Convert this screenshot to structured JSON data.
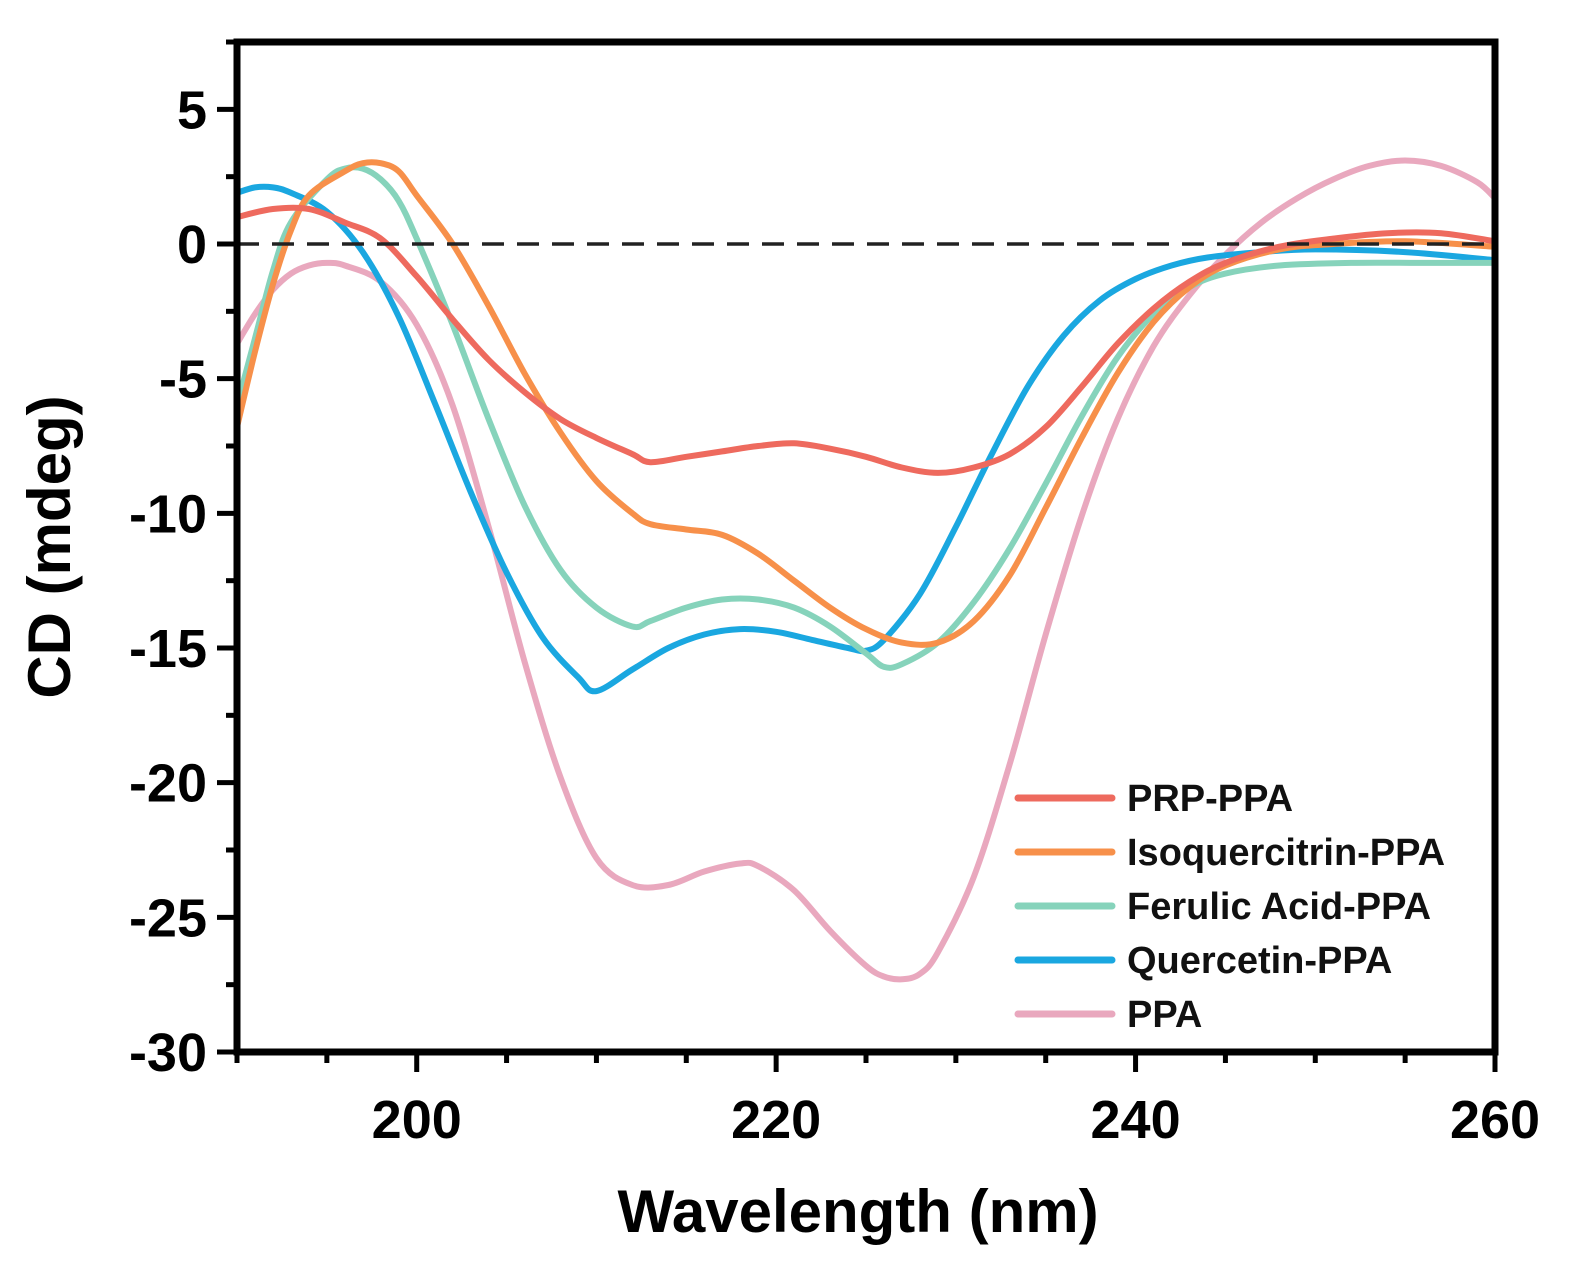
{
  "chart_data": {
    "type": "line",
    "title": "",
    "xlabel": "Wavelength (nm)",
    "ylabel": "CD (mdeg)",
    "xlim": [
      190,
      260
    ],
    "ylim": [
      -30,
      7.5
    ],
    "xticks": [
      200,
      220,
      240,
      260
    ],
    "xtick_labels": [
      "200",
      "220",
      "240",
      "260"
    ],
    "yticks": [
      5,
      0,
      -5,
      -10,
      -15,
      -20,
      -25,
      -30
    ],
    "ytick_labels": [
      "5",
      "0",
      "-5",
      "-10",
      "-15",
      "-20",
      "-25",
      "-30"
    ],
    "reference_line": {
      "y": 0,
      "style": "dashed",
      "color": "#222222"
    },
    "grid": false,
    "legend_position": "bottom-right",
    "series": [
      {
        "name": "PRP-PPA",
        "color": "#EE6A5E",
        "points": [
          [
            190,
            1.0
          ],
          [
            192,
            1.3
          ],
          [
            194,
            1.3
          ],
          [
            196,
            0.8
          ],
          [
            198,
            0.2
          ],
          [
            200,
            -1.2
          ],
          [
            202,
            -2.8
          ],
          [
            204,
            -4.3
          ],
          [
            206,
            -5.5
          ],
          [
            208,
            -6.5
          ],
          [
            210,
            -7.2
          ],
          [
            212,
            -7.8
          ],
          [
            213,
            -8.1
          ],
          [
            215,
            -7.9
          ],
          [
            217,
            -7.7
          ],
          [
            219,
            -7.5
          ],
          [
            221,
            -7.4
          ],
          [
            223,
            -7.6
          ],
          [
            225,
            -7.9
          ],
          [
            227,
            -8.3
          ],
          [
            229,
            -8.5
          ],
          [
            231,
            -8.3
          ],
          [
            233,
            -7.8
          ],
          [
            235,
            -6.8
          ],
          [
            237,
            -5.3
          ],
          [
            239,
            -3.7
          ],
          [
            241,
            -2.4
          ],
          [
            243,
            -1.4
          ],
          [
            245,
            -0.7
          ],
          [
            248,
            -0.1
          ],
          [
            251,
            0.2
          ],
          [
            254,
            0.4
          ],
          [
            257,
            0.4
          ],
          [
            260,
            0.1
          ]
        ]
      },
      {
        "name": "Isoquercitrin-PPA",
        "color": "#F7904A",
        "points": [
          [
            190,
            -6.8
          ],
          [
            191,
            -4.0
          ],
          [
            192,
            -1.5
          ],
          [
            193,
            0.5
          ],
          [
            194,
            1.8
          ],
          [
            196,
            2.7
          ],
          [
            197,
            3.0
          ],
          [
            198,
            3.0
          ],
          [
            199,
            2.7
          ],
          [
            200,
            1.8
          ],
          [
            202,
            0.0
          ],
          [
            204,
            -2.3
          ],
          [
            206,
            -4.8
          ],
          [
            208,
            -7.0
          ],
          [
            210,
            -8.8
          ],
          [
            212,
            -10.0
          ],
          [
            213,
            -10.4
          ],
          [
            215,
            -10.6
          ],
          [
            217,
            -10.8
          ],
          [
            219,
            -11.5
          ],
          [
            221,
            -12.5
          ],
          [
            223,
            -13.5
          ],
          [
            225,
            -14.3
          ],
          [
            227,
            -14.8
          ],
          [
            229,
            -14.8
          ],
          [
            231,
            -14.0
          ],
          [
            233,
            -12.3
          ],
          [
            235,
            -9.8
          ],
          [
            237,
            -7.2
          ],
          [
            239,
            -4.8
          ],
          [
            241,
            -2.9
          ],
          [
            243,
            -1.6
          ],
          [
            245,
            -0.8
          ],
          [
            248,
            -0.2
          ],
          [
            251,
            0.0
          ],
          [
            255,
            0.1
          ],
          [
            260,
            -0.1
          ]
        ]
      },
      {
        "name": "Ferulic Acid-PPA",
        "color": "#86D3BB",
        "points": [
          [
            190,
            -6.0
          ],
          [
            191,
            -3.5
          ],
          [
            192,
            -1.0
          ],
          [
            193,
            0.8
          ],
          [
            195,
            2.4
          ],
          [
            196,
            2.8
          ],
          [
            197,
            2.8
          ],
          [
            198,
            2.4
          ],
          [
            199,
            1.6
          ],
          [
            200,
            0.2
          ],
          [
            202,
            -3.0
          ],
          [
            204,
            -6.5
          ],
          [
            206,
            -9.7
          ],
          [
            208,
            -12.1
          ],
          [
            210,
            -13.5
          ],
          [
            212,
            -14.2
          ],
          [
            213,
            -14.0
          ],
          [
            215,
            -13.5
          ],
          [
            217,
            -13.2
          ],
          [
            219,
            -13.2
          ],
          [
            221,
            -13.5
          ],
          [
            223,
            -14.2
          ],
          [
            225,
            -15.2
          ],
          [
            226,
            -15.7
          ],
          [
            227,
            -15.6
          ],
          [
            229,
            -14.8
          ],
          [
            231,
            -13.3
          ],
          [
            233,
            -11.3
          ],
          [
            235,
            -8.9
          ],
          [
            237,
            -6.4
          ],
          [
            239,
            -4.2
          ],
          [
            241,
            -2.6
          ],
          [
            243,
            -1.6
          ],
          [
            245,
            -1.1
          ],
          [
            248,
            -0.8
          ],
          [
            252,
            -0.7
          ],
          [
            256,
            -0.7
          ],
          [
            260,
            -0.7
          ]
        ]
      },
      {
        "name": "Quercetin-PPA",
        "color": "#1AA7E0",
        "points": [
          [
            190,
            1.9
          ],
          [
            191,
            2.1
          ],
          [
            192,
            2.1
          ],
          [
            193,
            1.9
          ],
          [
            195,
            1.2
          ],
          [
            197,
            -0.3
          ],
          [
            199,
            -2.7
          ],
          [
            201,
            -5.9
          ],
          [
            203,
            -9.2
          ],
          [
            205,
            -12.2
          ],
          [
            207,
            -14.6
          ],
          [
            209,
            -16.1
          ],
          [
            210,
            -16.6
          ],
          [
            212,
            -15.8
          ],
          [
            214,
            -15.0
          ],
          [
            216,
            -14.5
          ],
          [
            218,
            -14.3
          ],
          [
            220,
            -14.4
          ],
          [
            222,
            -14.7
          ],
          [
            224,
            -15.0
          ],
          [
            225,
            -15.1
          ],
          [
            226,
            -14.7
          ],
          [
            228,
            -13.0
          ],
          [
            230,
            -10.5
          ],
          [
            232,
            -7.8
          ],
          [
            234,
            -5.3
          ],
          [
            236,
            -3.4
          ],
          [
            238,
            -2.1
          ],
          [
            240,
            -1.3
          ],
          [
            242,
            -0.8
          ],
          [
            244,
            -0.5
          ],
          [
            247,
            -0.3
          ],
          [
            250,
            -0.2
          ],
          [
            255,
            -0.3
          ],
          [
            260,
            -0.6
          ]
        ]
      },
      {
        "name": "PPA",
        "color": "#E9A8BE",
        "points": [
          [
            190,
            -3.7
          ],
          [
            191,
            -2.6
          ],
          [
            192,
            -1.7
          ],
          [
            193,
            -1.1
          ],
          [
            194,
            -0.8
          ],
          [
            195,
            -0.7
          ],
          [
            196,
            -0.8
          ],
          [
            198,
            -1.4
          ],
          [
            200,
            -3.0
          ],
          [
            202,
            -6.0
          ],
          [
            204,
            -10.5
          ],
          [
            206,
            -15.5
          ],
          [
            208,
            -19.8
          ],
          [
            210,
            -22.8
          ],
          [
            212,
            -23.8
          ],
          [
            214,
            -23.8
          ],
          [
            216,
            -23.3
          ],
          [
            218,
            -23.0
          ],
          [
            219,
            -23.1
          ],
          [
            221,
            -24.0
          ],
          [
            223,
            -25.5
          ],
          [
            225,
            -26.8
          ],
          [
            226,
            -27.2
          ],
          [
            227,
            -27.3
          ],
          [
            228,
            -27.1
          ],
          [
            229,
            -26.3
          ],
          [
            231,
            -23.5
          ],
          [
            233,
            -19.3
          ],
          [
            235,
            -14.5
          ],
          [
            237,
            -10.1
          ],
          [
            239,
            -6.5
          ],
          [
            241,
            -3.8
          ],
          [
            243,
            -1.9
          ],
          [
            245,
            -0.4
          ],
          [
            247,
            0.8
          ],
          [
            249,
            1.7
          ],
          [
            251,
            2.4
          ],
          [
            253,
            2.9
          ],
          [
            255,
            3.1
          ],
          [
            257,
            2.9
          ],
          [
            259,
            2.3
          ],
          [
            260,
            1.7
          ]
        ]
      }
    ]
  }
}
